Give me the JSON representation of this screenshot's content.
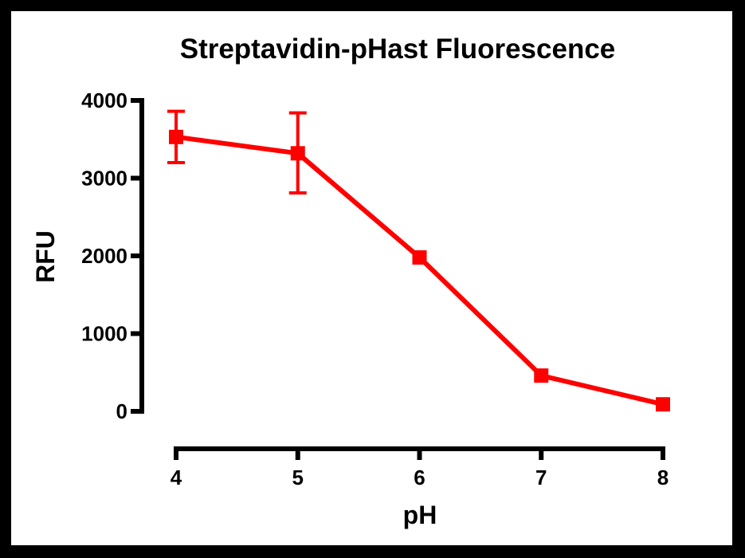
{
  "chart_data": {
    "type": "line",
    "title": "Streptavidin-pHast Fluorescence",
    "xlabel": "pH",
    "ylabel": "RFU",
    "xlim": [
      4,
      8
    ],
    "ylim": [
      0,
      4000
    ],
    "xticks": [
      "4",
      "5",
      "6",
      "7",
      "8"
    ],
    "yticks": [
      "0",
      "1000",
      "2000",
      "3000",
      "4000"
    ],
    "grid": false,
    "series": [
      {
        "color": "#ff0000",
        "marker": "square",
        "points": [
          {
            "x": 4,
            "y": 3530,
            "err_low": 3200,
            "err_high": 3860
          },
          {
            "x": 5,
            "y": 3320,
            "err_low": 2810,
            "err_high": 3840
          },
          {
            "x": 6,
            "y": 1980,
            "err_low": 1980,
            "err_high": 1980
          },
          {
            "x": 7,
            "y": 460,
            "err_low": 460,
            "err_high": 460
          },
          {
            "x": 8,
            "y": 90,
            "err_low": 90,
            "err_high": 90
          }
        ]
      }
    ]
  }
}
